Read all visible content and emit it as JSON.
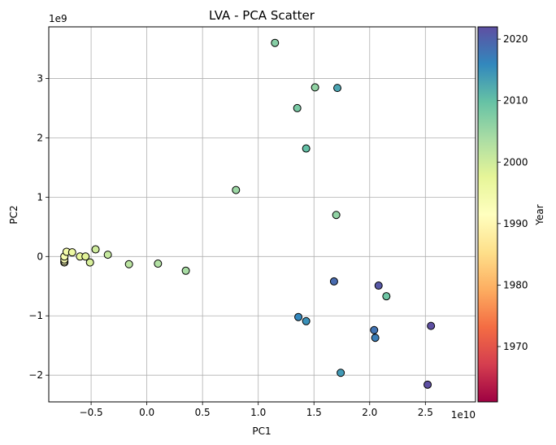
{
  "chart_data": {
    "type": "scatter",
    "title": "LVA - PCA Scatter",
    "xlabel": "PC1",
    "ylabel": "PC2",
    "x_offset_label": "1e10",
    "y_offset_label": "1e9",
    "xlim": [
      -0.88,
      2.95
    ],
    "ylim": [
      -2.45,
      3.87
    ],
    "xticks": [
      -0.5,
      0.0,
      0.5,
      1.0,
      1.5,
      2.0,
      2.5
    ],
    "xtick_labels": [
      "−0.5",
      "0.0",
      "0.5",
      "1.0",
      "1.5",
      "2.0",
      "2.5"
    ],
    "yticks": [
      -2,
      -1,
      0,
      1,
      2,
      3
    ],
    "ytick_labels": [
      "−2",
      "−1",
      "0",
      "1",
      "2",
      "3"
    ],
    "grid": true,
    "colormap": "Spectral",
    "colorbar": {
      "label": "Year",
      "range": [
        1961,
        2022
      ],
      "ticks": [
        1970,
        1980,
        1990,
        2000,
        2010,
        2020
      ],
      "tick_labels": [
        "1970",
        "1980",
        "1990",
        "2000",
        "2010",
        "2020"
      ]
    },
    "points": [
      {
        "x": -0.74,
        "y": -0.1,
        "year": 1991
      },
      {
        "x": -0.74,
        "y": -0.08,
        "year": 1992
      },
      {
        "x": -0.74,
        "y": -0.05,
        "year": 1993
      },
      {
        "x": -0.74,
        "y": 0.0,
        "year": 1994
      },
      {
        "x": -0.72,
        "y": 0.08,
        "year": 1995
      },
      {
        "x": -0.67,
        "y": 0.07,
        "year": 1996
      },
      {
        "x": -0.6,
        "y": 0.0,
        "year": 1997
      },
      {
        "x": -0.55,
        "y": 0.0,
        "year": 1998
      },
      {
        "x": -0.51,
        "y": -0.1,
        "year": 1999
      },
      {
        "x": -0.46,
        "y": 0.12,
        "year": 2000
      },
      {
        "x": -0.35,
        "y": 0.03,
        "year": 2001
      },
      {
        "x": -0.16,
        "y": -0.13,
        "year": 2002
      },
      {
        "x": 0.1,
        "y": -0.12,
        "year": 2003
      },
      {
        "x": 0.35,
        "y": -0.24,
        "year": 2004
      },
      {
        "x": 0.8,
        "y": 1.12,
        "year": 2005
      },
      {
        "x": 1.15,
        "y": 3.6,
        "year": 2007
      },
      {
        "x": 1.35,
        "y": 2.5,
        "year": 2008
      },
      {
        "x": 1.51,
        "y": 2.85,
        "year": 2006
      },
      {
        "x": 1.71,
        "y": 2.84,
        "year": 2013
      },
      {
        "x": 1.43,
        "y": 1.82,
        "year": 2010
      },
      {
        "x": 1.7,
        "y": 0.7,
        "year": 2006
      },
      {
        "x": 2.15,
        "y": -0.67,
        "year": 2009
      },
      {
        "x": 1.68,
        "y": -0.42,
        "year": 2019
      },
      {
        "x": 2.08,
        "y": -0.49,
        "year": 2021
      },
      {
        "x": 1.36,
        "y": -1.02,
        "year": 2016
      },
      {
        "x": 1.43,
        "y": -1.09,
        "year": 2015
      },
      {
        "x": 2.04,
        "y": -1.24,
        "year": 2018
      },
      {
        "x": 2.05,
        "y": -1.37,
        "year": 2017
      },
      {
        "x": 2.55,
        "y": -1.17,
        "year": 2022
      },
      {
        "x": 1.74,
        "y": -1.96,
        "year": 2014
      },
      {
        "x": 2.52,
        "y": -2.16,
        "year": 2022
      }
    ]
  }
}
